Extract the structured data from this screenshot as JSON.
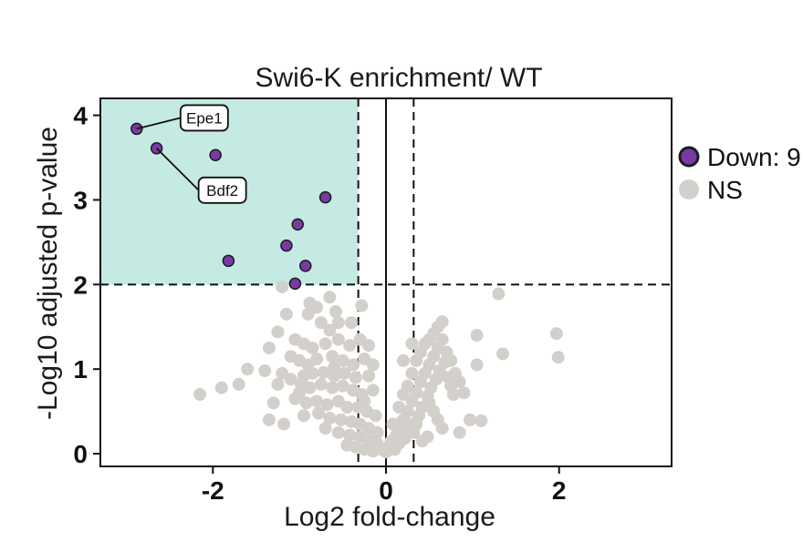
{
  "colors": {
    "down": "#7a3aa6",
    "down_stroke": "#1c1c1c",
    "ns": "#d3d0cb",
    "shade": "#c5eae3"
  },
  "chart_data": {
    "type": "scatter",
    "title": "Swi6-K enrichment/ WT",
    "xlabel": "Log2 fold-change",
    "ylabel": "-Log10 adjusted p-value",
    "xlim": [
      -3.3,
      3.3
    ],
    "ylim": [
      -0.15,
      4.2
    ],
    "x_ticks": [
      {
        "value": -2,
        "label": "-2"
      },
      {
        "value": 0,
        "label": "0"
      },
      {
        "value": 2,
        "label": "2"
      }
    ],
    "y_ticks": [
      {
        "value": 0,
        "label": "0"
      },
      {
        "value": 1,
        "label": "1"
      },
      {
        "value": 2,
        "label": "2"
      },
      {
        "value": 3,
        "label": "3"
      },
      {
        "value": 4,
        "label": "4"
      }
    ],
    "thresholds": {
      "fold_change": [
        -0.32,
        0.32
      ],
      "p_value": 2
    },
    "legend": [
      {
        "key": "down",
        "label": "Down: 9"
      },
      {
        "key": "ns",
        "label": "NS"
      }
    ],
    "legend_position": "right",
    "series": [
      {
        "name": "Down: 9",
        "key": "down",
        "points": [
          {
            "x": -2.88,
            "y": 3.84
          },
          {
            "x": -2.65,
            "y": 3.61
          },
          {
            "x": -1.97,
            "y": 3.53
          },
          {
            "x": -0.7,
            "y": 3.03
          },
          {
            "x": -1.02,
            "y": 2.71
          },
          {
            "x": -1.15,
            "y": 2.46
          },
          {
            "x": -0.93,
            "y": 2.22
          },
          {
            "x": -1.82,
            "y": 2.28
          },
          {
            "x": -1.05,
            "y": 2.01
          }
        ]
      },
      {
        "name": "NS",
        "key": "ns",
        "points": [
          {
            "x": -1.2,
            "y": 1.97
          },
          {
            "x": -0.88,
            "y": 1.78
          },
          {
            "x": -0.8,
            "y": 1.73
          },
          {
            "x": -0.58,
            "y": 1.68
          },
          {
            "x": -0.28,
            "y": 1.75
          },
          {
            "x": -0.9,
            "y": 1.65
          },
          {
            "x": -0.75,
            "y": 1.55
          },
          {
            "x": -0.55,
            "y": 1.55
          },
          {
            "x": -0.4,
            "y": 1.55
          },
          {
            "x": -0.65,
            "y": 1.46
          },
          {
            "x": -1.25,
            "y": 1.44
          },
          {
            "x": -1.05,
            "y": 1.35
          },
          {
            "x": -0.95,
            "y": 1.3
          },
          {
            "x": -0.85,
            "y": 1.25
          },
          {
            "x": -0.7,
            "y": 1.3
          },
          {
            "x": -0.55,
            "y": 1.35
          },
          {
            "x": -0.42,
            "y": 1.28
          },
          {
            "x": -0.3,
            "y": 1.35
          },
          {
            "x": -0.2,
            "y": 1.28
          },
          {
            "x": -1.35,
            "y": 1.25
          },
          {
            "x": -1.1,
            "y": 1.15
          },
          {
            "x": -1.0,
            "y": 1.1
          },
          {
            "x": -0.9,
            "y": 1.05
          },
          {
            "x": -0.8,
            "y": 1.12
          },
          {
            "x": -0.62,
            "y": 1.15
          },
          {
            "x": -0.5,
            "y": 1.1
          },
          {
            "x": -0.38,
            "y": 1.05
          },
          {
            "x": -0.25,
            "y": 1.12
          },
          {
            "x": -0.15,
            "y": 1.05
          },
          {
            "x": -1.6,
            "y": 1.0
          },
          {
            "x": -1.4,
            "y": 0.98
          },
          {
            "x": -1.2,
            "y": 0.95
          },
          {
            "x": -0.95,
            "y": 0.92
          },
          {
            "x": -0.85,
            "y": 0.95
          },
          {
            "x": -0.72,
            "y": 0.96
          },
          {
            "x": -0.6,
            "y": 0.92
          },
          {
            "x": -0.48,
            "y": 0.95
          },
          {
            "x": -0.35,
            "y": 0.9
          },
          {
            "x": -0.2,
            "y": 0.92
          },
          {
            "x": -1.1,
            "y": 0.88
          },
          {
            "x": -0.98,
            "y": 0.82
          },
          {
            "x": -0.88,
            "y": 0.78
          },
          {
            "x": -0.75,
            "y": 0.82
          },
          {
            "x": -0.62,
            "y": 0.78
          },
          {
            "x": -0.5,
            "y": 0.8
          },
          {
            "x": -0.38,
            "y": 0.75
          },
          {
            "x": -0.28,
            "y": 0.7
          },
          {
            "x": -0.15,
            "y": 0.75
          },
          {
            "x": -1.7,
            "y": 0.82
          },
          {
            "x": -2.15,
            "y": 0.7
          },
          {
            "x": -1.9,
            "y": 0.78
          },
          {
            "x": -1.3,
            "y": 0.6
          },
          {
            "x": -1.05,
            "y": 0.65
          },
          {
            "x": -0.92,
            "y": 0.6
          },
          {
            "x": -0.8,
            "y": 0.62
          },
          {
            "x": -0.68,
            "y": 0.58
          },
          {
            "x": -0.55,
            "y": 0.62
          },
          {
            "x": -0.45,
            "y": 0.55
          },
          {
            "x": -0.32,
            "y": 0.55
          },
          {
            "x": -0.22,
            "y": 0.5
          },
          {
            "x": -0.12,
            "y": 0.45
          },
          {
            "x": -0.95,
            "y": 0.45
          },
          {
            "x": -0.78,
            "y": 0.48
          },
          {
            "x": -0.65,
            "y": 0.42
          },
          {
            "x": -0.52,
            "y": 0.4
          },
          {
            "x": -0.4,
            "y": 0.38
          },
          {
            "x": -0.3,
            "y": 0.35
          },
          {
            "x": -0.2,
            "y": 0.3
          },
          {
            "x": -0.1,
            "y": 0.25
          },
          {
            "x": -1.35,
            "y": 0.4
          },
          {
            "x": -1.18,
            "y": 0.35
          },
          {
            "x": -0.7,
            "y": 0.3
          },
          {
            "x": -0.55,
            "y": 0.25
          },
          {
            "x": -0.42,
            "y": 0.22
          },
          {
            "x": -0.3,
            "y": 0.2
          },
          {
            "x": -0.2,
            "y": 0.15
          },
          {
            "x": -0.1,
            "y": 0.12
          },
          {
            "x": -0.05,
            "y": 0.05
          },
          {
            "x": -0.45,
            "y": 0.1
          },
          {
            "x": -0.35,
            "y": 0.08
          },
          {
            "x": -0.25,
            "y": 0.05
          },
          {
            "x": -0.15,
            "y": 0.03
          },
          {
            "x": -1.15,
            "y": 1.65
          },
          {
            "x": -0.65,
            "y": 1.85
          },
          {
            "x": -1.0,
            "y": 0.72
          },
          {
            "x": -0.25,
            "y": 0.62
          },
          {
            "x": -0.6,
            "y": 1.02
          },
          {
            "x": -1.25,
            "y": 0.82
          },
          {
            "x": 0.0,
            "y": 0.02
          },
          {
            "x": 0.03,
            "y": 0.08
          },
          {
            "x": 0.06,
            "y": 0.15
          },
          {
            "x": 0.1,
            "y": 0.05
          },
          {
            "x": 0.12,
            "y": 0.22
          },
          {
            "x": 0.15,
            "y": 0.12
          },
          {
            "x": 0.18,
            "y": 0.3
          },
          {
            "x": 0.2,
            "y": 0.4
          },
          {
            "x": 0.22,
            "y": 0.18
          },
          {
            "x": 0.25,
            "y": 0.5
          },
          {
            "x": 0.28,
            "y": 0.35
          },
          {
            "x": 0.3,
            "y": 0.62
          },
          {
            "x": 0.32,
            "y": 0.25
          },
          {
            "x": 0.35,
            "y": 0.72
          },
          {
            "x": 0.38,
            "y": 0.45
          },
          {
            "x": 0.4,
            "y": 0.85
          },
          {
            "x": 0.42,
            "y": 0.55
          },
          {
            "x": 0.45,
            "y": 0.95
          },
          {
            "x": 0.48,
            "y": 0.68
          },
          {
            "x": 0.5,
            "y": 1.05
          },
          {
            "x": 0.52,
            "y": 0.78
          },
          {
            "x": 0.55,
            "y": 1.15
          },
          {
            "x": 0.58,
            "y": 0.88
          },
          {
            "x": 0.6,
            "y": 1.25
          },
          {
            "x": 0.62,
            "y": 0.98
          },
          {
            "x": 0.65,
            "y": 1.35
          },
          {
            "x": 0.68,
            "y": 1.08
          },
          {
            "x": 0.72,
            "y": 0.9
          },
          {
            "x": 0.75,
            "y": 0.8
          },
          {
            "x": 0.78,
            "y": 0.7
          },
          {
            "x": 0.8,
            "y": 0.95
          },
          {
            "x": 0.85,
            "y": 0.85
          },
          {
            "x": 0.9,
            "y": 0.72
          },
          {
            "x": 0.25,
            "y": 0.8
          },
          {
            "x": 0.3,
            "y": 0.95
          },
          {
            "x": 0.35,
            "y": 1.1
          },
          {
            "x": 0.4,
            "y": 1.2
          },
          {
            "x": 0.45,
            "y": 1.3
          },
          {
            "x": 0.5,
            "y": 1.35
          },
          {
            "x": 0.55,
            "y": 1.42
          },
          {
            "x": 0.6,
            "y": 1.5
          },
          {
            "x": 0.65,
            "y": 1.56
          },
          {
            "x": 0.5,
            "y": 0.6
          },
          {
            "x": 0.55,
            "y": 0.5
          },
          {
            "x": 0.6,
            "y": 0.4
          },
          {
            "x": 0.65,
            "y": 0.3
          },
          {
            "x": 0.15,
            "y": 0.55
          },
          {
            "x": 0.2,
            "y": 0.7
          },
          {
            "x": 0.35,
            "y": 0.35
          },
          {
            "x": 0.42,
            "y": 0.15
          },
          {
            "x": 0.48,
            "y": 0.2
          },
          {
            "x": 0.08,
            "y": 0.35
          },
          {
            "x": 0.7,
            "y": 1.2
          },
          {
            "x": 0.75,
            "y": 1.1
          },
          {
            "x": 1.05,
            "y": 1.05
          },
          {
            "x": 1.05,
            "y": 1.4
          },
          {
            "x": 1.3,
            "y": 1.89
          },
          {
            "x": 1.35,
            "y": 1.18
          },
          {
            "x": 0.97,
            "y": 0.4
          },
          {
            "x": 1.1,
            "y": 0.39
          },
          {
            "x": 0.85,
            "y": 0.25
          },
          {
            "x": 1.97,
            "y": 1.42
          },
          {
            "x": 1.99,
            "y": 1.14
          },
          {
            "x": 0.2,
            "y": 1.1
          },
          {
            "x": 0.3,
            "y": 1.3
          }
        ]
      }
    ],
    "annotations": [
      {
        "label": "Epe1",
        "x": -2.88,
        "y": 3.84
      },
      {
        "label": "Bdf2",
        "x": -2.65,
        "y": 3.61
      }
    ]
  }
}
